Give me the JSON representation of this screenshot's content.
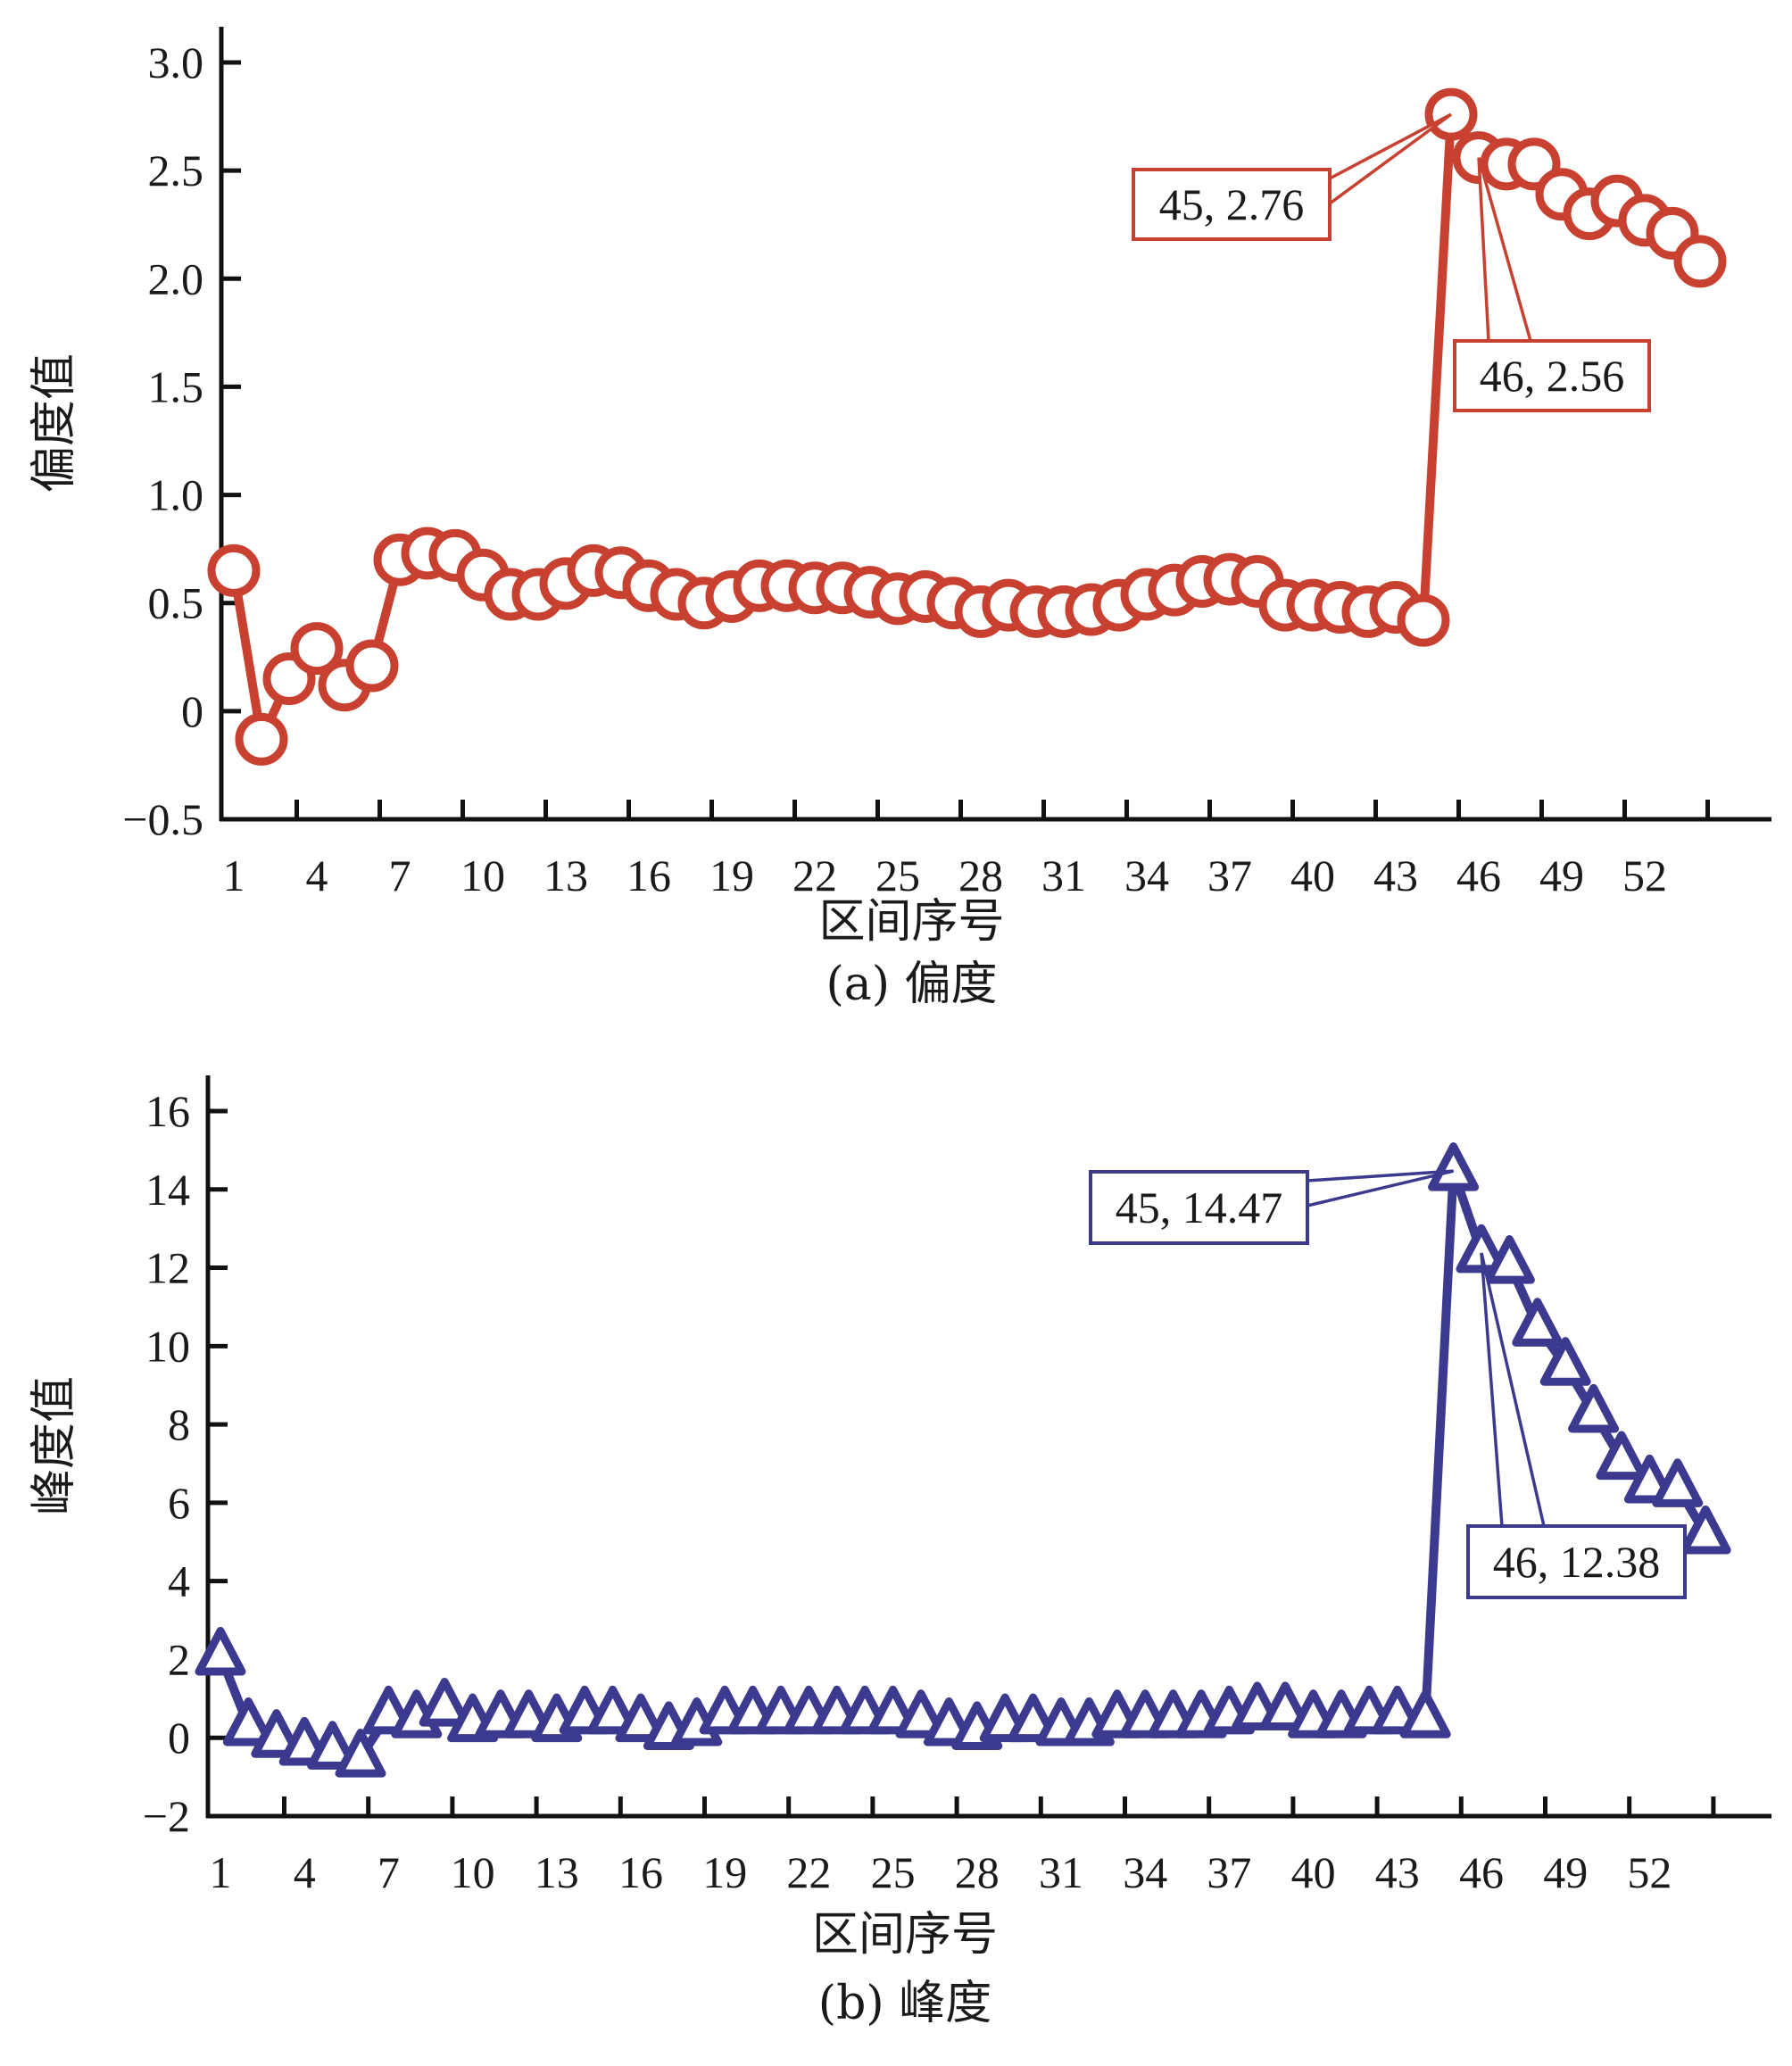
{
  "chart_data": [
    {
      "type": "line",
      "id": "skewness",
      "marker": "circle",
      "color": "#c8402f",
      "title": "",
      "caption": "(a) 偏度",
      "xlabel": "区间序号",
      "ylabel": "偏度值",
      "ylim": [
        -0.5,
        3.0
      ],
      "yticks": [
        -0.5,
        0,
        0.5,
        1.0,
        1.5,
        2.0,
        2.5,
        3.0
      ],
      "ytick_labels": [
        "−0.5",
        "0",
        "0.5",
        "1.0",
        "1.5",
        "2.0",
        "2.5",
        "3.0"
      ],
      "xticks": [
        1,
        4,
        7,
        10,
        13,
        16,
        19,
        22,
        25,
        28,
        31,
        34,
        37,
        40,
        43,
        46,
        49,
        52
      ],
      "xtick_labels": [
        "1",
        "4",
        "7",
        "10",
        "13",
        "16",
        "19",
        "22",
        "25",
        "28",
        "31",
        "34",
        "37",
        "40",
        "43",
        "46",
        "49",
        "52"
      ],
      "x": [
        1,
        2,
        3,
        4,
        5,
        6,
        7,
        8,
        9,
        10,
        11,
        12,
        13,
        14,
        15,
        16,
        17,
        18,
        19,
        20,
        21,
        22,
        23,
        24,
        25,
        26,
        27,
        28,
        29,
        30,
        31,
        32,
        33,
        34,
        35,
        36,
        37,
        38,
        39,
        40,
        41,
        42,
        43,
        44,
        45,
        46,
        47,
        48,
        49,
        50,
        51,
        52,
        53,
        54
      ],
      "values": [
        0.65,
        -0.13,
        0.15,
        0.29,
        0.12,
        0.21,
        0.7,
        0.73,
        0.72,
        0.63,
        0.54,
        0.54,
        0.59,
        0.65,
        0.64,
        0.58,
        0.54,
        0.5,
        0.53,
        0.58,
        0.58,
        0.57,
        0.57,
        0.55,
        0.52,
        0.53,
        0.5,
        0.46,
        0.49,
        0.46,
        0.46,
        0.47,
        0.49,
        0.54,
        0.56,
        0.6,
        0.61,
        0.6,
        0.49,
        0.49,
        0.48,
        0.46,
        0.48,
        0.42,
        2.76,
        2.56,
        2.53,
        2.53,
        2.39,
        2.3,
        2.36,
        2.27,
        2.21,
        2.08
      ],
      "annotations": [
        {
          "x": 45,
          "y": 2.76,
          "text": "45, 2.76"
        },
        {
          "x": 46,
          "y": 2.56,
          "text": "46, 2.56"
        }
      ],
      "grid": false,
      "legend": "none"
    },
    {
      "type": "line",
      "id": "kurtosis",
      "marker": "triangle",
      "color": "#3b3a8f",
      "title": "",
      "caption": "(b) 峰度",
      "xlabel": "区间序号",
      "ylabel": "峰度值",
      "ylim": [
        -2,
        16
      ],
      "yticks": [
        -2,
        0,
        2,
        4,
        6,
        8,
        10,
        12,
        14,
        16
      ],
      "ytick_labels": [
        "−2",
        "0",
        "2",
        "4",
        "6",
        "8",
        "10",
        "12",
        "14",
        "16"
      ],
      "xticks": [
        1,
        4,
        7,
        10,
        13,
        16,
        19,
        22,
        25,
        28,
        31,
        34,
        37,
        40,
        43,
        46,
        49,
        52
      ],
      "xtick_labels": [
        "1",
        "4",
        "7",
        "10",
        "13",
        "16",
        "19",
        "22",
        "25",
        "28",
        "31",
        "34",
        "37",
        "40",
        "43",
        "46",
        "49",
        "52"
      ],
      "x": [
        1,
        2,
        3,
        4,
        5,
        6,
        7,
        8,
        9,
        10,
        11,
        12,
        13,
        14,
        15,
        16,
        17,
        18,
        19,
        20,
        21,
        22,
        23,
        24,
        25,
        26,
        27,
        28,
        29,
        30,
        31,
        32,
        33,
        34,
        35,
        36,
        37,
        38,
        39,
        40,
        41,
        42,
        43,
        44,
        45,
        46,
        47,
        48,
        49,
        50,
        51,
        52,
        53,
        54
      ],
      "values": [
        2.1,
        0.3,
        0.0,
        -0.2,
        -0.3,
        -0.5,
        0.6,
        0.5,
        0.8,
        0.4,
        0.5,
        0.5,
        0.4,
        0.6,
        0.6,
        0.4,
        0.2,
        0.3,
        0.6,
        0.6,
        0.6,
        0.6,
        0.6,
        0.6,
        0.6,
        0.5,
        0.3,
        0.2,
        0.4,
        0.4,
        0.3,
        0.3,
        0.5,
        0.5,
        0.5,
        0.5,
        0.6,
        0.7,
        0.7,
        0.5,
        0.5,
        0.6,
        0.6,
        0.5,
        14.47,
        12.38,
        12.1,
        10.5,
        9.5,
        8.3,
        7.1,
        6.5,
        6.4,
        5.2
      ],
      "annotations": [
        {
          "x": 45,
          "y": 14.47,
          "text": "45, 14.47"
        },
        {
          "x": 46,
          "y": 12.38,
          "text": "46, 12.38"
        }
      ],
      "grid": false,
      "legend": "none"
    }
  ]
}
